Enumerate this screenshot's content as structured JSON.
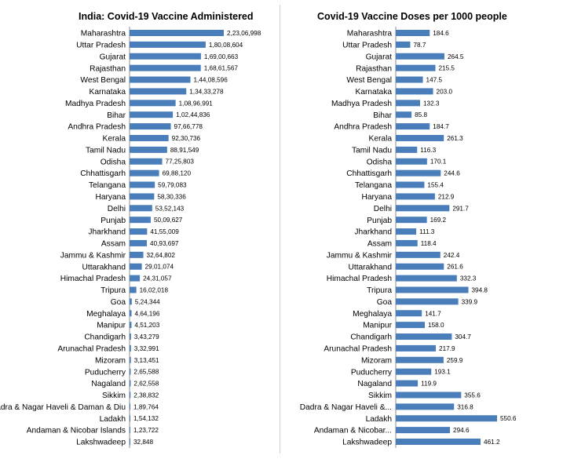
{
  "charts": [
    {
      "chart_data": {
        "type": "bar",
        "orientation": "horizontal",
        "title": "India: Covid-19 Vaccine Administered",
        "categories": [
          "Maharashtra",
          "Uttar Pradesh",
          "Gujarat",
          "Rajasthan",
          "West Bengal",
          "Karnataka",
          "Madhya Pradesh",
          "Bihar",
          "Andhra Pradesh",
          "Kerala",
          "Tamil Nadu",
          "Odisha",
          "Chhattisgarh",
          "Telangana",
          "Haryana",
          "Delhi",
          "Punjab",
          "Jharkhand",
          "Assam",
          "Jammu & Kashmir",
          "Uttarakhand",
          "Himachal Pradesh",
          "Tripura",
          "Goa",
          "Meghalaya",
          "Manipur",
          "Chandigarh",
          "Arunachal Pradesh",
          "Mizoram",
          "Puducherry",
          "Nagaland",
          "Sikkim",
          "Dadra & Nagar Haveli & Daman & Diu",
          "Ladakh",
          "Andaman & Nicobar Islands",
          "Lakshwadeep"
        ],
        "category_labels": [
          "Maharashtra",
          "Uttar Pradesh",
          "Gujarat",
          "Rajasthan",
          "West Bengal",
          "Karnataka",
          "Madhya Pradesh",
          "Bihar",
          "Andhra Pradesh",
          "Kerala",
          "Tamil Nadu",
          "Odisha",
          "Chhattisgarh",
          "Telangana",
          "Haryana",
          "Delhi",
          "Punjab",
          "Jharkhand",
          "Assam",
          "Jammu & Kashmir",
          "Uttarakhand",
          "Himachal Pradesh",
          "Tripura",
          "Goa",
          "Meghalaya",
          "Manipur",
          "Chandigarh",
          "Arunachal Pradesh",
          "Mizoram",
          "Puducherry",
          "Nagaland",
          "Sikkim",
          "Dadra & Nagar Haveli & Daman & Diu",
          "Ladakh",
          "Andaman & Nicobar Islands",
          "Lakshwadeep"
        ],
        "values": [
          22306998,
          18008604,
          16900663,
          16861567,
          14408596,
          13433278,
          10896991,
          10244836,
          9766778,
          9230736,
          8891549,
          7725803,
          6988120,
          5979083,
          5830336,
          5352143,
          5009627,
          4155009,
          4093697,
          3264802,
          2901074,
          2431057,
          1602018,
          524344,
          464196,
          451203,
          343279,
          332991,
          313451,
          265588,
          262558,
          238832,
          189764,
          154132,
          123722,
          32848
        ],
        "value_labels": [
          "2,23,06,998",
          "1,80,08,604",
          "1,69,00,663",
          "1,68,61,567",
          "1,44,08,596",
          "1,34,33,278",
          "1,08,96,991",
          "1,02,44,836",
          "97,66,778",
          "92,30,736",
          "88,91,549",
          "77,25,803",
          "69,88,120",
          "59,79,083",
          "58,30,336",
          "53,52,143",
          "50,09,627",
          "41,55,009",
          "40,93,697",
          "32,64,802",
          "29,01,074",
          "24,31,057",
          "16,02,018",
          "5,24,344",
          "4,64,196",
          "4,51,203",
          "3,43,279",
          "3,32,991",
          "3,13,451",
          "2,65,588",
          "2,62,558",
          "2,38,832",
          "1,89,764",
          "1,54,132",
          "1,23,722",
          "32,848"
        ],
        "xlim": [
          0,
          22306998
        ],
        "grid": false,
        "bar_color": "#4a7ebb"
      }
    },
    {
      "chart_data": {
        "type": "bar",
        "orientation": "horizontal",
        "title": "Covid-19 Vaccine Doses per 1000 people",
        "categories": [
          "Maharashtra",
          "Uttar Pradesh",
          "Gujarat",
          "Rajasthan",
          "West Bengal",
          "Karnataka",
          "Madhya Pradesh",
          "Bihar",
          "Andhra Pradesh",
          "Kerala",
          "Tamil Nadu",
          "Odisha",
          "Chhattisgarh",
          "Telangana",
          "Haryana",
          "Delhi",
          "Punjab",
          "Jharkhand",
          "Assam",
          "Jammu & Kashmir",
          "Uttarakhand",
          "Himachal Pradesh",
          "Tripura",
          "Goa",
          "Meghalaya",
          "Manipur",
          "Chandigarh",
          "Arunachal Pradesh",
          "Mizoram",
          "Puducherry",
          "Nagaland",
          "Sikkim",
          "Dadra & Nagar Haveli & Daman & Diu",
          "Ladakh",
          "Andaman & Nicobar Islands",
          "Lakshwadeep"
        ],
        "category_labels": [
          "Maharashtra",
          "Uttar Pradesh",
          "Gujarat",
          "Rajasthan",
          "West Bengal",
          "Karnataka",
          "Madhya Pradesh",
          "Bihar",
          "Andhra Pradesh",
          "Kerala",
          "Tamil Nadu",
          "Odisha",
          "Chhattisgarh",
          "Telangana",
          "Haryana",
          "Delhi",
          "Punjab",
          "Jharkhand",
          "Assam",
          "Jammu & Kashmir",
          "Uttarakhand",
          "Himachal Pradesh",
          "Tripura",
          "Goa",
          "Meghalaya",
          "Manipur",
          "Chandigarh",
          "Arunachal Pradesh",
          "Mizoram",
          "Puducherry",
          "Nagaland",
          "Sikkim",
          "Dadra & Nagar Haveli &...",
          "Ladakh",
          "Andaman & Nicobar...",
          "Lakshwadeep"
        ],
        "values": [
          184.6,
          78.7,
          264.5,
          215.5,
          147.5,
          203.0,
          132.3,
          85.8,
          184.7,
          261.3,
          116.3,
          170.1,
          244.6,
          155.4,
          212.9,
          291.7,
          169.2,
          111.3,
          118.4,
          242.4,
          261.6,
          332.3,
          394.8,
          339.9,
          141.7,
          158.0,
          304.7,
          217.9,
          259.9,
          193.1,
          119.9,
          355.6,
          316.8,
          550.6,
          294.6,
          461.2
        ],
        "value_labels": [
          "184.6",
          "78.7",
          "264.5",
          "215.5",
          "147.5",
          "203.0",
          "132.3",
          "85.8",
          "184.7",
          "261.3",
          "116.3",
          "170.1",
          "244.6",
          "155.4",
          "212.9",
          "291.7",
          "169.2",
          "111.3",
          "118.4",
          "242.4",
          "261.6",
          "332.3",
          "394.8",
          "339.9",
          "141.7",
          "158.0",
          "304.7",
          "217.9",
          "259.9",
          "193.1",
          "119.9",
          "355.6",
          "316.8",
          "550.6",
          "294.6",
          "461.2"
        ],
        "xlim": [
          0,
          550.6
        ],
        "grid": false,
        "bar_color": "#4a7ebb"
      }
    }
  ]
}
